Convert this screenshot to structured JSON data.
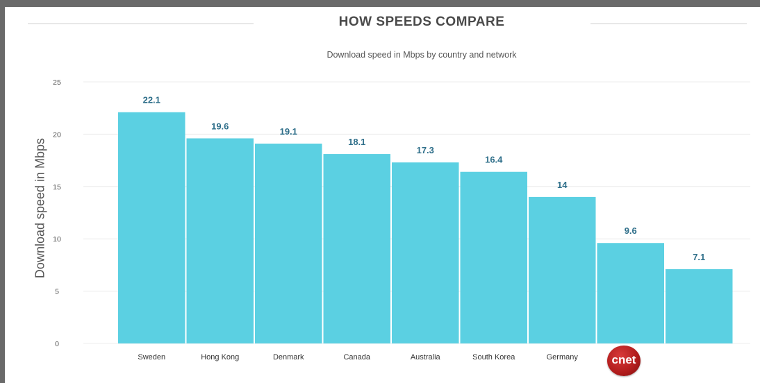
{
  "header": {
    "title": "HOW SPEEDS COMPARE",
    "subtitle": "Download speed in Mbps by country and network"
  },
  "logo": {
    "text": "cnet"
  },
  "colors": {
    "bar": "#5bd0e2",
    "value_label": "#2f6f8a",
    "grid": "#ececec"
  },
  "chart_data": {
    "type": "bar",
    "title": "HOW SPEEDS COMPARE",
    "subtitle": "Download speed in Mbps by country and network",
    "xlabel": "",
    "ylabel": "Download speed in Mbps",
    "ylim": [
      0,
      25
    ],
    "yticks": [
      0,
      5,
      10,
      15,
      20,
      25
    ],
    "grid": true,
    "categories": [
      "Sweden",
      "Hong Kong",
      "Denmark",
      "Canada",
      "Australia",
      "South Korea",
      "Germany",
      "",
      ""
    ],
    "values": [
      22.1,
      19.6,
      19.1,
      18.1,
      17.3,
      16.4,
      14,
      9.6,
      7.1
    ],
    "value_labels": [
      "22.1",
      "19.6",
      "19.1",
      "18.1",
      "17.3",
      "16.4",
      "14",
      "9.6",
      "7.1"
    ]
  }
}
